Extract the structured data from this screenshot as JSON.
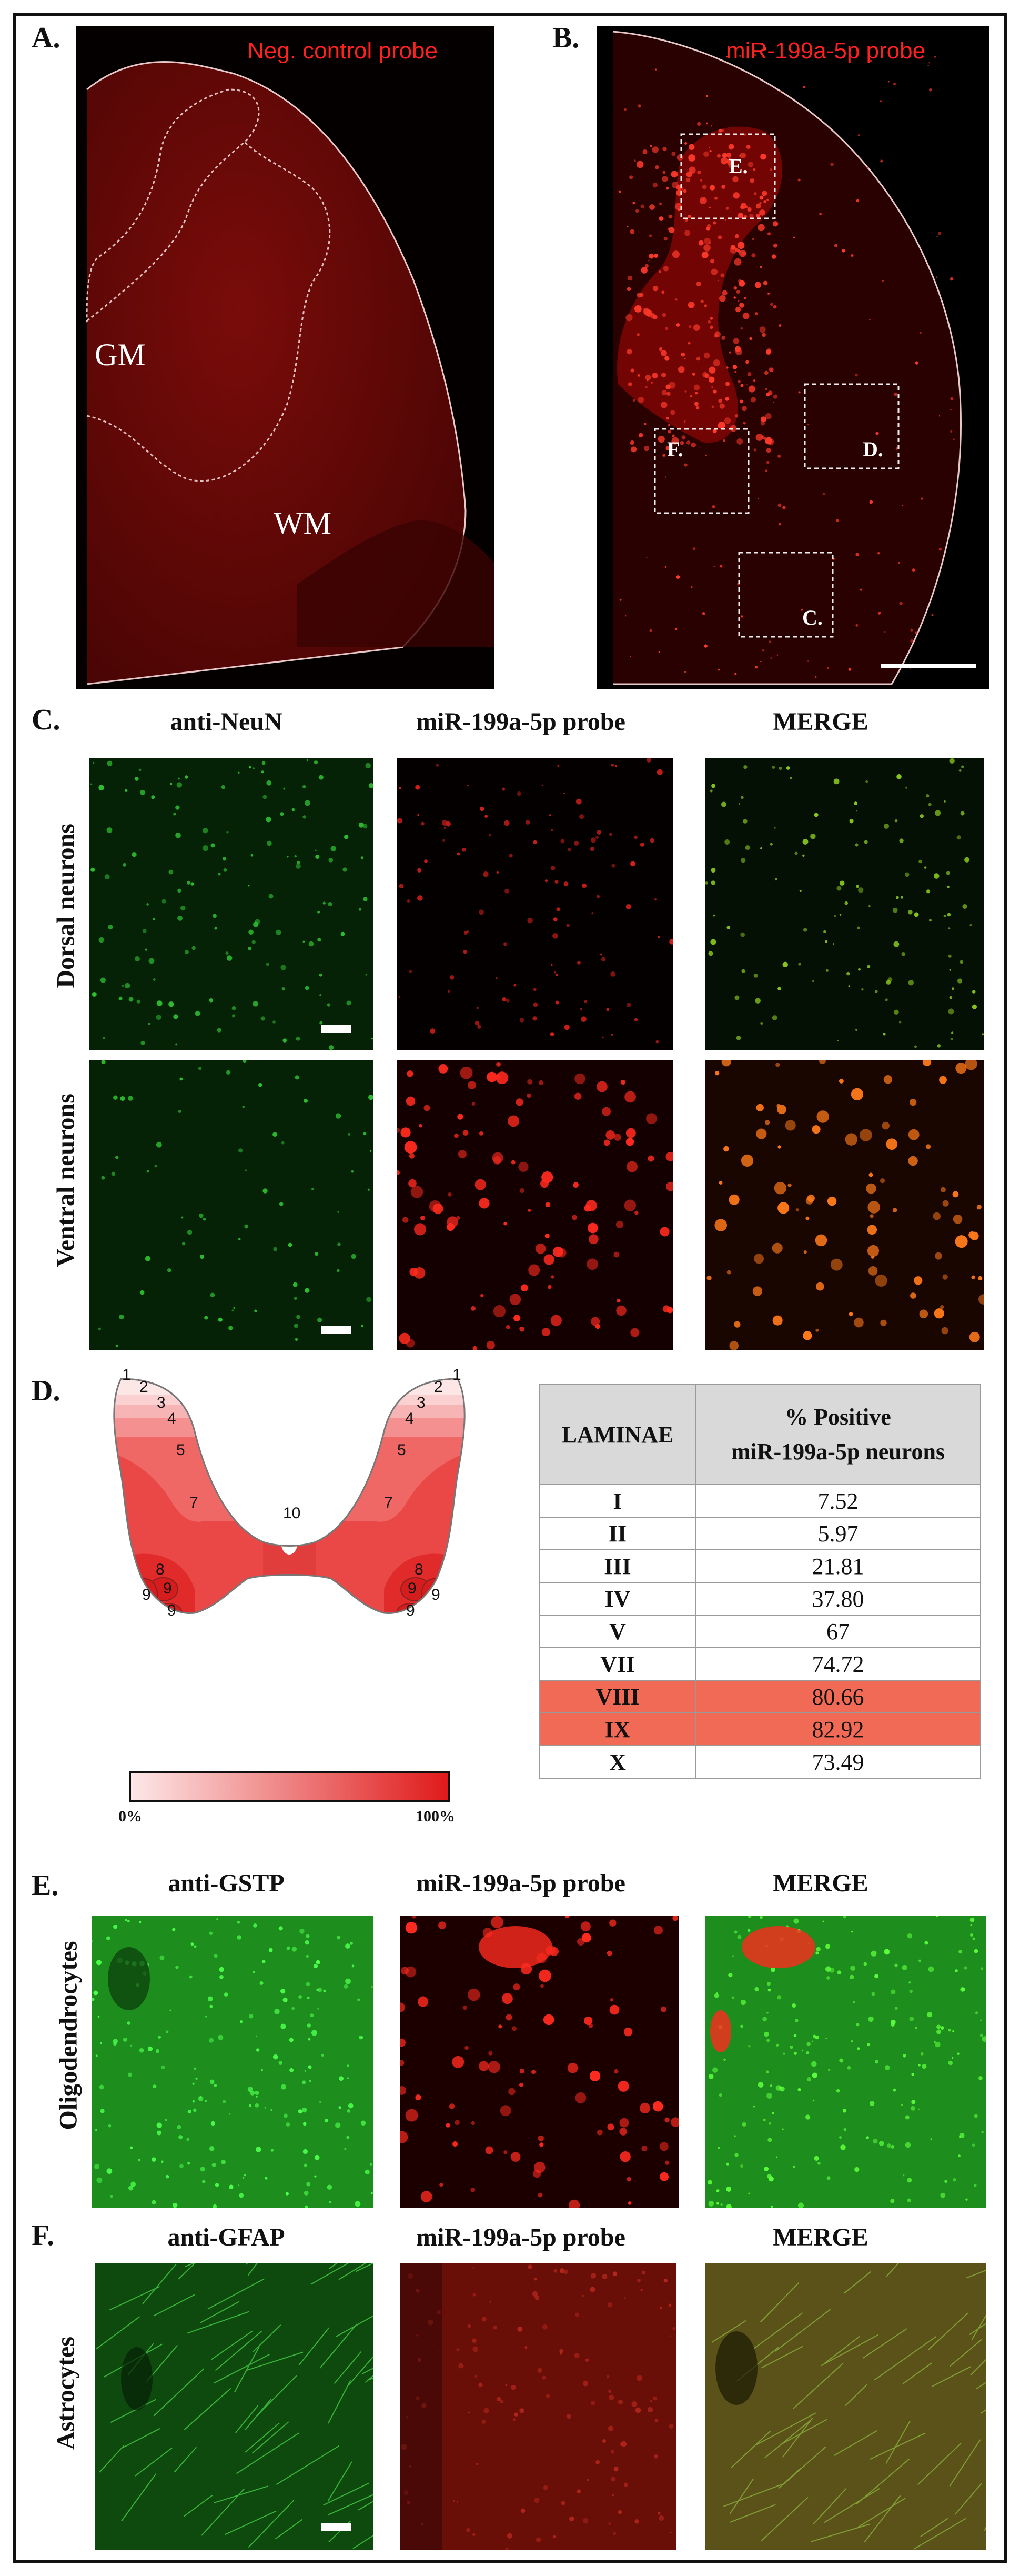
{
  "panels": {
    "A": {
      "label": "A.",
      "title": "Neg. control probe",
      "gm": "GM",
      "wm": "WM"
    },
    "B": {
      "label": "B.",
      "title": "miR-199a-5p probe",
      "boxes": [
        "E.",
        "F.",
        "D.",
        "C."
      ]
    },
    "C": {
      "label": "C.",
      "cols": [
        "anti-NeuN",
        "miR-199a-5p probe",
        "MERGE"
      ],
      "rows": [
        "Dorsal neurons",
        "Ventral neurons"
      ]
    },
    "D": {
      "label": "D.",
      "lamina_numbers": [
        "1",
        "2",
        "3",
        "4",
        "5",
        "7",
        "10",
        "8",
        "9",
        "9",
        "9",
        "1",
        "2",
        "3",
        "4",
        "5",
        "7",
        "8",
        "9",
        "9",
        "9"
      ],
      "gradient": {
        "min": "0%",
        "max": "100%"
      },
      "table": {
        "header_laminae": "LAMINAE",
        "header_pos_line1": "% Positive",
        "header_pos_line2": "miR-199a-5p neurons",
        "rows": [
          {
            "lamina": "I",
            "value": "7.52"
          },
          {
            "lamina": "II",
            "value": "5.97"
          },
          {
            "lamina": "III",
            "value": "21.81"
          },
          {
            "lamina": "IV",
            "value": "37.80"
          },
          {
            "lamina": "V",
            "value": "67"
          },
          {
            "lamina": "VII",
            "value": "74.72"
          },
          {
            "lamina": "VIII",
            "value": "80.66"
          },
          {
            "lamina": "IX",
            "value": "82.92"
          },
          {
            "lamina": "X",
            "value": "73.49"
          }
        ]
      }
    },
    "E": {
      "label": "E.",
      "cols": [
        "anti-GSTP",
        "miR-199a-5p probe",
        "MERGE"
      ],
      "row": "Oligodendrocytes"
    },
    "F": {
      "label": "F.",
      "cols": [
        "anti-GFAP",
        "miR-199a-5p probe",
        "MERGE"
      ],
      "row": "Astrocytes"
    }
  },
  "colors": {
    "red_text": "#ff2020",
    "highlight": "#f06a55",
    "header_gray": "#d9d9d9"
  }
}
